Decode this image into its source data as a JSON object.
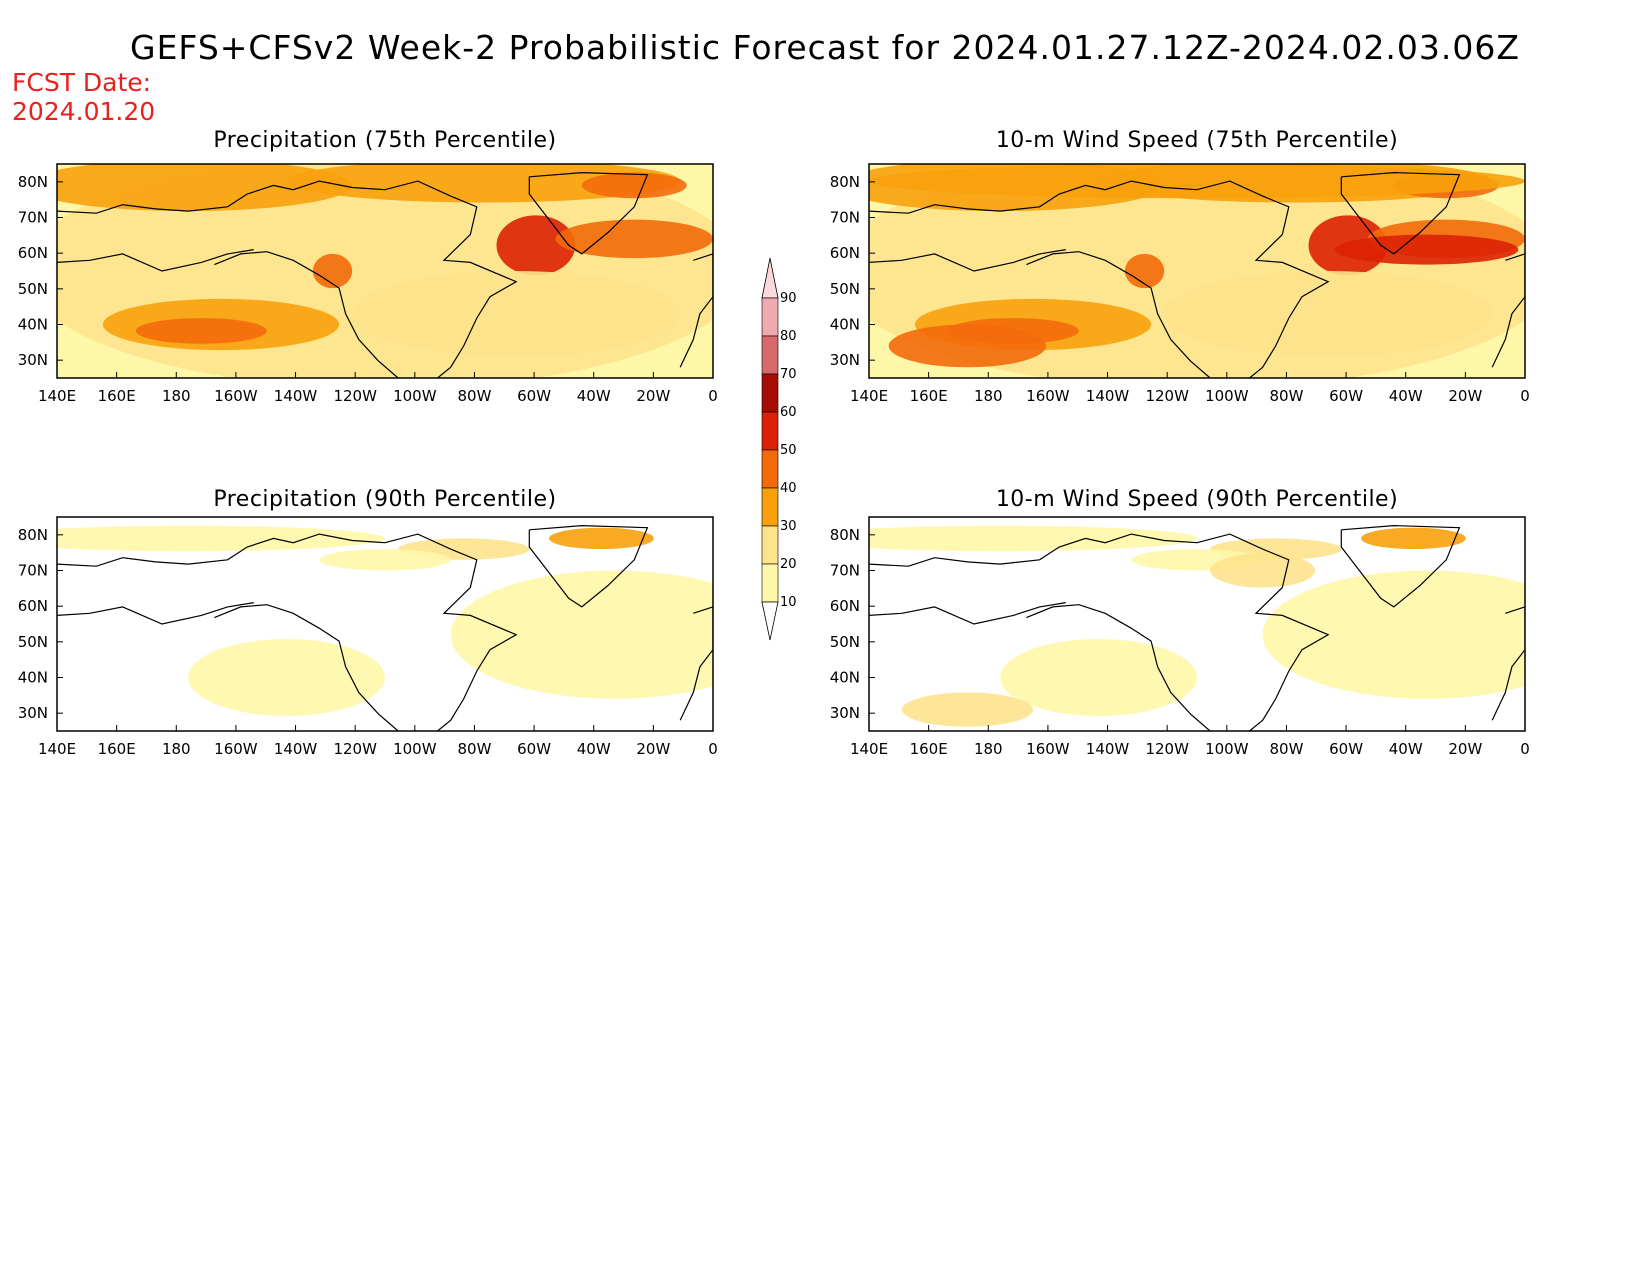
{
  "title": "GEFS+CFSv2 Week-2 Probabilistic Forecast for 2024.01.27.12Z-2024.02.03.06Z",
  "fcst_date_label": "FCST Date:",
  "fcst_date_value": "2024.01.20",
  "panels": [
    {
      "id": "precip75",
      "title": "Precipitation (75th Percentile)",
      "intensity": "high"
    },
    {
      "id": "wind75",
      "title": "10-m Wind Speed (75th Percentile)",
      "intensity": "high"
    },
    {
      "id": "precip90",
      "title": "Precipitation (90th Percentile)",
      "intensity": "low"
    },
    {
      "id": "wind90",
      "title": "10-m Wind Speed (90th Percentile)",
      "intensity": "low"
    }
  ],
  "lon_ticks": [
    "140E",
    "160E",
    "180",
    "160W",
    "140W",
    "120W",
    "100W",
    "80W",
    "60W",
    "40W",
    "20W",
    "0"
  ],
  "lat_ticks": [
    "80N",
    "70N",
    "60N",
    "50N",
    "40N",
    "30N"
  ],
  "colorbar": {
    "levels": [
      "10",
      "20",
      "30",
      "40",
      "50",
      "60",
      "70",
      "80",
      "90"
    ],
    "colors": [
      "#fff7a8",
      "#fde38c",
      "#f8a10c",
      "#f36a0a",
      "#dc2105",
      "#a80d05",
      "#d7686c",
      "#eeaab0",
      "#fbd9da"
    ]
  }
}
